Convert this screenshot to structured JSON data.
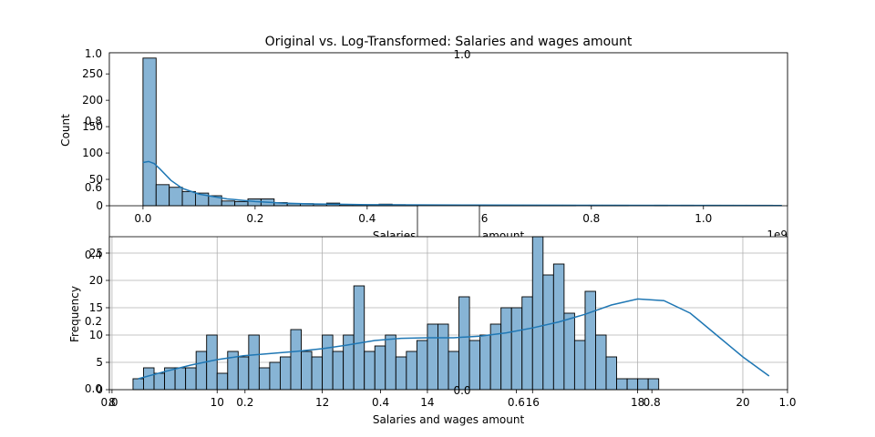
{
  "figure": {
    "title": "Original vs. Log-Transformed: Salaries and wages amount",
    "background_axes_ticks": [
      "0.0",
      "0.2",
      "0.4",
      "0.6",
      "0.8",
      "1.0"
    ],
    "background_axes_stray_labels": [
      "1.0",
      "0.8",
      "0.6",
      "0.4",
      "0.2",
      "0.0",
      "1.0",
      "0.0"
    ]
  },
  "chart_data": [
    {
      "type": "bar",
      "subtype": "histogram-with-kde",
      "xlabel": "Salaries and wages amount",
      "ylabel": "Count",
      "x_offset_label": "1e9",
      "xlim": [
        -0.06,
        1.15
      ],
      "ylim": [
        0,
        290
      ],
      "xticks": [
        0.0,
        0.2,
        0.4,
        0.6,
        0.8,
        1.0
      ],
      "xtick_labels": [
        "0.0",
        "0.2",
        "0.4",
        "0.6",
        "0.8",
        "1.0"
      ],
      "yticks": [
        0,
        50,
        100,
        150,
        200,
        250
      ],
      "ytick_labels": [
        "0",
        "50",
        "100",
        "150",
        "200",
        "250"
      ],
      "grid": false,
      "bar_color": "#87b4d5",
      "edge_color": "#000000",
      "kde_color": "#1f77b4",
      "bin_start": 0.0,
      "bin_width": 0.0234,
      "counts": [
        280,
        40,
        35,
        27,
        24,
        19,
        9,
        8,
        13,
        13,
        6,
        4,
        4,
        3,
        5,
        2,
        2,
        2,
        3,
        2,
        1,
        1,
        1,
        1,
        1,
        1,
        1,
        1,
        1,
        1,
        1,
        1,
        1,
        0,
        1,
        1,
        1,
        0,
        0,
        1,
        0,
        1,
        0,
        1,
        1,
        1,
        1,
        1,
        0
      ],
      "kde": {
        "x": [
          0.0,
          0.01,
          0.02,
          0.03,
          0.05,
          0.07,
          0.1,
          0.15,
          0.2,
          0.25,
          0.3,
          0.4,
          0.6,
          0.8,
          1.0,
          1.14
        ],
        "y": [
          82,
          84,
          80,
          70,
          48,
          33,
          22,
          13,
          8,
          5,
          3.5,
          2,
          1.2,
          0.8,
          0.6,
          0.5
        ]
      }
    },
    {
      "type": "bar",
      "subtype": "histogram-with-kde",
      "xlabel": "Salaries and wages amount",
      "ylabel": "Frequency",
      "xlim": [
        7.95,
        20.85
      ],
      "ylim": [
        0,
        28
      ],
      "xticks": [
        8,
        10,
        12,
        14,
        16,
        18,
        20
      ],
      "xtick_labels": [
        "8",
        "10",
        "12",
        "14",
        "16",
        "18",
        "20"
      ],
      "yticks": [
        0,
        5,
        10,
        15,
        20,
        25
      ],
      "ytick_labels": [
        "0",
        "5",
        "10",
        "15",
        "20",
        "25"
      ],
      "grid": true,
      "bar_color": "#87b4d5",
      "edge_color": "#000000",
      "kde_color": "#1f77b4",
      "bin_start": 8.4,
      "bin_width": 0.2,
      "counts": [
        2,
        4,
        3,
        4,
        4,
        4,
        7,
        10,
        3,
        7,
        6,
        10,
        4,
        5,
        6,
        11,
        7,
        6,
        10,
        7,
        10,
        19,
        7,
        8,
        10,
        6,
        7,
        9,
        12,
        12,
        7,
        17,
        9,
        10,
        12,
        15,
        15,
        17,
        28,
        21,
        23,
        14,
        9,
        18,
        10,
        6,
        2,
        2,
        2,
        2
      ],
      "kde": {
        "x": [
          8.5,
          9.0,
          9.5,
          10.0,
          10.5,
          11.0,
          11.5,
          12.0,
          12.5,
          13.0,
          13.5,
          14.0,
          14.5,
          15.0,
          15.5,
          16.0,
          16.5,
          17.0,
          17.5,
          18.0,
          18.5,
          19.0,
          19.5,
          20.0,
          20.5
        ],
        "y": [
          2.0,
          3.3,
          4.5,
          5.5,
          6.2,
          6.6,
          7.0,
          7.5,
          8.2,
          9.0,
          9.4,
          9.5,
          9.5,
          9.8,
          10.4,
          11.3,
          12.4,
          13.8,
          15.5,
          16.6,
          16.3,
          14.0,
          10.0,
          6.0,
          2.5
        ]
      }
    }
  ]
}
